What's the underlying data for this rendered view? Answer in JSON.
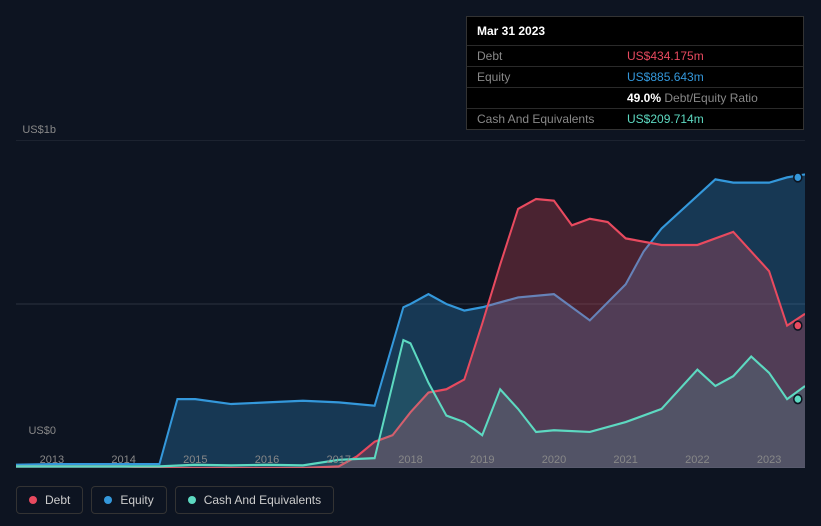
{
  "chart": {
    "type": "area",
    "background_color": "#0d1421",
    "grid_color": "#2a3240",
    "y_axis": {
      "labels": [
        "US$1b",
        "US$0"
      ],
      "min": 0,
      "max": 1000,
      "gridlines": [
        0,
        500,
        1000
      ]
    },
    "x_axis": {
      "labels": [
        "2013",
        "2014",
        "2015",
        "2016",
        "2017",
        "2018",
        "2019",
        "2020",
        "2021",
        "2022",
        "2023"
      ],
      "min": 2012.5,
      "max": 2023.5
    },
    "series": [
      {
        "name": "Debt",
        "color": "#e84a5f",
        "fill_opacity": 0.28,
        "data": [
          [
            2012.5,
            5
          ],
          [
            2013,
            5
          ],
          [
            2013.5,
            5
          ],
          [
            2014,
            5
          ],
          [
            2014.5,
            0
          ],
          [
            2015,
            0
          ],
          [
            2015.5,
            0
          ],
          [
            2016,
            0
          ],
          [
            2016.5,
            0
          ],
          [
            2017,
            5
          ],
          [
            2017.25,
            35
          ],
          [
            2017.5,
            80
          ],
          [
            2017.75,
            100
          ],
          [
            2018,
            170
          ],
          [
            2018.25,
            230
          ],
          [
            2018.5,
            240
          ],
          [
            2018.75,
            270
          ],
          [
            2019,
            440
          ],
          [
            2019.25,
            620
          ],
          [
            2019.5,
            790
          ],
          [
            2019.75,
            820
          ],
          [
            2020,
            815
          ],
          [
            2020.25,
            740
          ],
          [
            2020.5,
            760
          ],
          [
            2020.75,
            750
          ],
          [
            2021,
            700
          ],
          [
            2021.5,
            680
          ],
          [
            2022,
            680
          ],
          [
            2022.5,
            720
          ],
          [
            2023,
            600
          ],
          [
            2023.25,
            434
          ],
          [
            2023.5,
            470
          ]
        ]
      },
      {
        "name": "Equity",
        "color": "#3498db",
        "fill_opacity": 0.28,
        "data": [
          [
            2012.5,
            10
          ],
          [
            2013,
            12
          ],
          [
            2013.5,
            12
          ],
          [
            2014,
            12
          ],
          [
            2014.5,
            12
          ],
          [
            2014.75,
            210
          ],
          [
            2015,
            210
          ],
          [
            2015.5,
            195
          ],
          [
            2016,
            200
          ],
          [
            2016.5,
            205
          ],
          [
            2017,
            200
          ],
          [
            2017.5,
            190
          ],
          [
            2017.9,
            490
          ],
          [
            2018,
            500
          ],
          [
            2018.25,
            530
          ],
          [
            2018.5,
            500
          ],
          [
            2018.75,
            480
          ],
          [
            2019,
            490
          ],
          [
            2019.5,
            520
          ],
          [
            2020,
            530
          ],
          [
            2020.5,
            450
          ],
          [
            2021,
            560
          ],
          [
            2021.25,
            660
          ],
          [
            2021.5,
            730
          ],
          [
            2022,
            830
          ],
          [
            2022.25,
            880
          ],
          [
            2022.5,
            870
          ],
          [
            2023,
            870
          ],
          [
            2023.25,
            886
          ],
          [
            2023.5,
            895
          ]
        ]
      },
      {
        "name": "Cash And Equivalents",
        "color": "#5dd9c1",
        "fill_opacity": 0.15,
        "data": [
          [
            2012.5,
            5
          ],
          [
            2013,
            5
          ],
          [
            2013.5,
            5
          ],
          [
            2014,
            5
          ],
          [
            2014.5,
            5
          ],
          [
            2015,
            10
          ],
          [
            2015.5,
            8
          ],
          [
            2016,
            10
          ],
          [
            2016.5,
            8
          ],
          [
            2017,
            25
          ],
          [
            2017.5,
            30
          ],
          [
            2017.9,
            390
          ],
          [
            2018,
            380
          ],
          [
            2018.25,
            260
          ],
          [
            2018.5,
            160
          ],
          [
            2018.75,
            140
          ],
          [
            2019,
            100
          ],
          [
            2019.25,
            240
          ],
          [
            2019.5,
            180
          ],
          [
            2019.75,
            110
          ],
          [
            2020,
            115
          ],
          [
            2020.5,
            110
          ],
          [
            2021,
            140
          ],
          [
            2021.5,
            180
          ],
          [
            2022,
            300
          ],
          [
            2022.25,
            250
          ],
          [
            2022.5,
            280
          ],
          [
            2022.75,
            340
          ],
          [
            2023,
            290
          ],
          [
            2023.25,
            210
          ],
          [
            2023.5,
            250
          ]
        ]
      }
    ]
  },
  "tooltip": {
    "title": "Mar 31 2023",
    "rows": [
      {
        "label": "Debt",
        "value": "US$434.175m",
        "color": "#e84a5f"
      },
      {
        "label": "Equity",
        "value": "US$885.643m",
        "color": "#3498db"
      },
      {
        "label": "",
        "value_prefix": "49.0%",
        "value_suffix": " Debt/Equity Ratio",
        "prefix_color": "#ffffff",
        "suffix_color": "#888888"
      },
      {
        "label": "Cash And Equivalents",
        "value": "US$209.714m",
        "color": "#5dd9c1"
      }
    ]
  },
  "legend": {
    "items": [
      {
        "label": "Debt",
        "color": "#e84a5f"
      },
      {
        "label": "Equity",
        "color": "#3498db"
      },
      {
        "label": "Cash And Equivalents",
        "color": "#5dd9c1"
      }
    ]
  }
}
